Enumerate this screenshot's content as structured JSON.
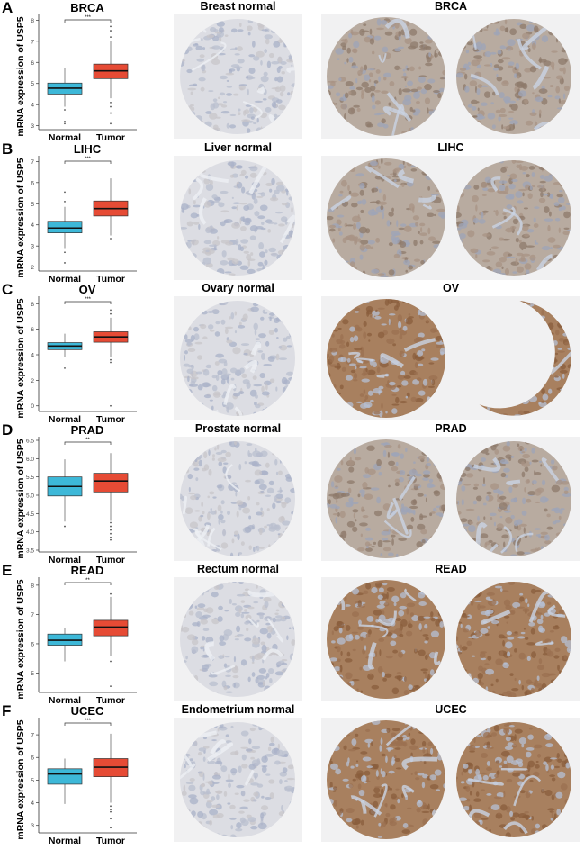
{
  "figure": {
    "y_axis_label": "mRNA expression of USP5",
    "x_categories": [
      "Normal",
      "Tumor"
    ],
    "colors": {
      "normal_box": "#3db8d8",
      "tumor_box": "#e64b35",
      "median": "#111111",
      "whisker": "#888888"
    }
  },
  "panels": [
    {
      "letter": "A",
      "title": "BRCA",
      "significance": "***",
      "normal_tissue_title": "Breast normal",
      "tumor_tissue_title": "BRCA",
      "ylim": [
        2.9,
        8.1
      ],
      "ticks": [
        3,
        4,
        5,
        6,
        7,
        8
      ],
      "normal": {
        "min": 3.9,
        "q1": 4.5,
        "median": 4.78,
        "q3": 5.02,
        "max": 5.75,
        "outliers": [
          3.75,
          3.2,
          3.1
        ]
      },
      "tumor": {
        "min": 4.3,
        "q1": 5.23,
        "median": 5.6,
        "q3": 5.92,
        "max": 7.0,
        "outliers": [
          7.2,
          7.5,
          7.7,
          4.1,
          3.9,
          3.6,
          3.1
        ]
      },
      "normal_stain": "weak",
      "tumor_stain": "moderate"
    },
    {
      "letter": "B",
      "title": "LIHC",
      "significance": "***",
      "normal_tissue_title": "Liver normal",
      "tumor_tissue_title": "LIHC",
      "ylim": [
        1.9,
        7.1
      ],
      "ticks": [
        2,
        3,
        4,
        5,
        6,
        7
      ],
      "normal": {
        "min": 2.9,
        "q1": 3.62,
        "median": 3.85,
        "q3": 4.17,
        "max": 4.85,
        "outliers": [
          5.1,
          5.55,
          2.7,
          2.2
        ]
      },
      "tumor": {
        "min": 3.5,
        "q1": 4.42,
        "median": 4.77,
        "q3": 5.13,
        "max": 6.2,
        "outliers": [
          3.35
        ]
      },
      "normal_stain": "weak",
      "tumor_stain": "moderate"
    },
    {
      "letter": "C",
      "title": "OV",
      "significance": "***",
      "normal_tissue_title": "Ovary normal",
      "tumor_tissue_title": "OV",
      "ylim": [
        -0.3,
        8.3
      ],
      "ticks": [
        0,
        2,
        4,
        6,
        8
      ],
      "normal": {
        "min": 3.85,
        "q1": 4.4,
        "median": 4.68,
        "q3": 4.95,
        "max": 5.65,
        "outliers": [
          2.95
        ]
      },
      "tumor": {
        "min": 3.8,
        "q1": 4.98,
        "median": 5.4,
        "q3": 5.8,
        "max": 6.9,
        "outliers": [
          7.2,
          7.5,
          3.6,
          3.4,
          0.0
        ]
      },
      "normal_stain": "weak",
      "tumor_stain": "strong"
    },
    {
      "letter": "D",
      "title": "PRAD",
      "significance": "**",
      "normal_tissue_title": "Prostate normal",
      "tumor_tissue_title": "PRAD",
      "ylim": [
        3.5,
        6.5
      ],
      "ticks": [
        3.5,
        4.0,
        4.5,
        5.0,
        5.5,
        6.0,
        6.5
      ],
      "tick_labels": [
        "3.5",
        "4.0",
        "4.5",
        "5.0",
        "5.5",
        "6.0",
        "6.5"
      ],
      "normal": {
        "min": 4.28,
        "q1": 4.98,
        "median": 5.24,
        "q3": 5.5,
        "max": 5.98,
        "outliers": [
          4.15
        ]
      },
      "tumor": {
        "min": 4.3,
        "q1": 5.09,
        "median": 5.39,
        "q3": 5.6,
        "max": 6.15,
        "outliers": [
          4.25,
          4.15,
          4.05,
          3.95,
          3.85,
          3.78
        ]
      },
      "normal_stain": "weak",
      "tumor_stain": "moderate"
    },
    {
      "letter": "E",
      "title": "READ",
      "significance": "**",
      "normal_tissue_title": "Rectum normal",
      "tumor_tissue_title": "READ",
      "ylim": [
        4.4,
        8.15
      ],
      "ticks": [
        5,
        6,
        7,
        8
      ],
      "normal": {
        "min": 5.4,
        "q1": 5.95,
        "median": 6.12,
        "q3": 6.33,
        "max": 6.55,
        "outliers": []
      },
      "tumor": {
        "min": 5.6,
        "q1": 6.27,
        "median": 6.57,
        "q3": 6.8,
        "max": 7.6,
        "outliers": [
          7.7,
          5.4,
          4.55
        ]
      },
      "normal_stain": "weak",
      "tumor_stain": "strong"
    },
    {
      "letter": "F",
      "title": "UCEC",
      "significance": "***",
      "normal_tissue_title": "Endometrium normal",
      "tumor_tissue_title": "UCEC",
      "ylim": [
        2.75,
        7.6
      ],
      "ticks": [
        3,
        4,
        5,
        6,
        7
      ],
      "normal": {
        "min": 3.95,
        "q1": 4.82,
        "median": 5.27,
        "q3": 5.5,
        "max": 5.95,
        "outliers": []
      },
      "tumor": {
        "min": 4.0,
        "q1": 5.15,
        "median": 5.57,
        "q3": 5.95,
        "max": 7.05,
        "outliers": [
          3.85,
          3.7,
          3.6,
          3.3,
          2.9
        ]
      },
      "normal_stain": "weak",
      "tumor_stain": "strong"
    }
  ],
  "chart_data": [
    {
      "type": "box",
      "title": "BRCA",
      "ylabel": "mRNA expression of USP5",
      "categories": [
        "Normal",
        "Tumor"
      ],
      "ylim": [
        3,
        8
      ],
      "annotation": "***",
      "series": [
        {
          "name": "Normal",
          "min": 3.9,
          "q1": 4.5,
          "median": 4.78,
          "q3": 5.02,
          "max": 5.75
        },
        {
          "name": "Tumor",
          "min": 4.3,
          "q1": 5.23,
          "median": 5.6,
          "q3": 5.92,
          "max": 7.0
        }
      ]
    },
    {
      "type": "box",
      "title": "LIHC",
      "ylabel": "mRNA expression of USP5",
      "categories": [
        "Normal",
        "Tumor"
      ],
      "ylim": [
        2,
        7
      ],
      "annotation": "***",
      "series": [
        {
          "name": "Normal",
          "min": 2.9,
          "q1": 3.62,
          "median": 3.85,
          "q3": 4.17,
          "max": 4.85
        },
        {
          "name": "Tumor",
          "min": 3.5,
          "q1": 4.42,
          "median": 4.77,
          "q3": 5.13,
          "max": 6.2
        }
      ]
    },
    {
      "type": "box",
      "title": "OV",
      "ylabel": "mRNA expression of USP5",
      "categories": [
        "Normal",
        "Tumor"
      ],
      "ylim": [
        0,
        8
      ],
      "annotation": "***",
      "series": [
        {
          "name": "Normal",
          "min": 3.85,
          "q1": 4.4,
          "median": 4.68,
          "q3": 4.95,
          "max": 5.65
        },
        {
          "name": "Tumor",
          "min": 3.8,
          "q1": 4.98,
          "median": 5.4,
          "q3": 5.8,
          "max": 6.9
        }
      ]
    },
    {
      "type": "box",
      "title": "PRAD",
      "ylabel": "mRNA expression of USP5",
      "categories": [
        "Normal",
        "Tumor"
      ],
      "ylim": [
        3.5,
        6.5
      ],
      "annotation": "**",
      "series": [
        {
          "name": "Normal",
          "min": 4.28,
          "q1": 4.98,
          "median": 5.24,
          "q3": 5.5,
          "max": 5.98
        },
        {
          "name": "Tumor",
          "min": 4.3,
          "q1": 5.09,
          "median": 5.39,
          "q3": 5.6,
          "max": 6.15
        }
      ]
    },
    {
      "type": "box",
      "title": "READ",
      "ylabel": "mRNA expression of USP5",
      "categories": [
        "Normal",
        "Tumor"
      ],
      "ylim": [
        5,
        8
      ],
      "annotation": "**",
      "series": [
        {
          "name": "Normal",
          "min": 5.4,
          "q1": 5.95,
          "median": 6.12,
          "q3": 6.33,
          "max": 6.55
        },
        {
          "name": "Tumor",
          "min": 5.6,
          "q1": 6.27,
          "median": 6.57,
          "q3": 6.8,
          "max": 7.6
        }
      ]
    },
    {
      "type": "box",
      "title": "UCEC",
      "ylabel": "mRNA expression of USP5",
      "categories": [
        "Normal",
        "Tumor"
      ],
      "ylim": [
        3,
        7
      ],
      "annotation": "***",
      "series": [
        {
          "name": "Normal",
          "min": 3.95,
          "q1": 4.82,
          "median": 5.27,
          "q3": 5.5,
          "max": 5.95
        },
        {
          "name": "Tumor",
          "min": 4.0,
          "q1": 5.15,
          "median": 5.57,
          "q3": 5.95,
          "max": 7.05
        }
      ]
    }
  ]
}
